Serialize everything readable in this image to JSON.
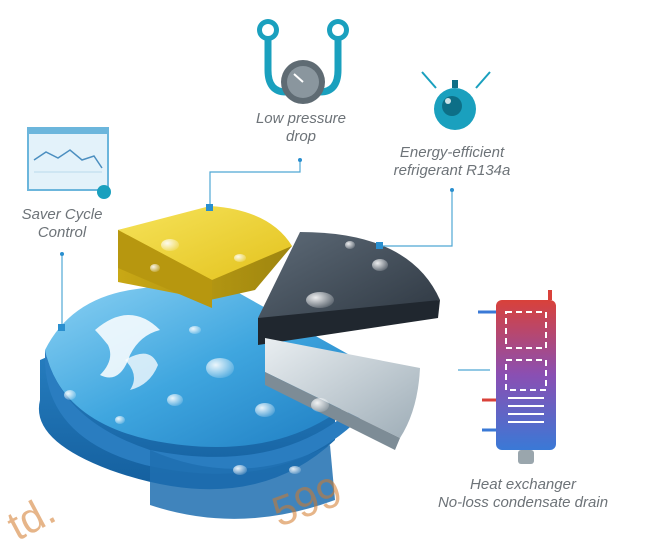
{
  "labels": {
    "low_pressure": {
      "line1": "Low pressure",
      "line2": "drop"
    },
    "refrigerant": {
      "line1": "Energy-efficient",
      "line2": "refrigerant R134a"
    },
    "saver_cycle": {
      "line1": "Saver Cycle",
      "line2": "Control"
    },
    "heat_exchanger": {
      "line1": "Heat exchanger",
      "line2": "No-loss condensate drain"
    }
  },
  "watermark": {
    "left": "td.",
    "right": "599"
  },
  "colors": {
    "blue_slice": "#3fa6df",
    "yellow_slice": "#f1d52d",
    "dark_slice": "#3c4652",
    "grey_slice": "#c9d2d8",
    "icon_teal": "#1aa0be",
    "connector": "#4fa8d4",
    "label_text": "#6d7378"
  }
}
